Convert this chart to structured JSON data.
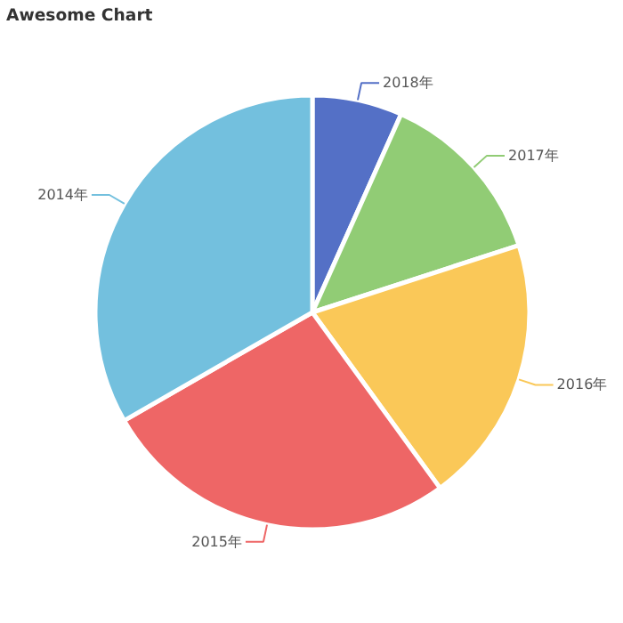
{
  "chart_data": {
    "type": "pie",
    "title": "Awesome Chart",
    "categories": [
      "2018年",
      "2017年",
      "2016年",
      "2015年",
      "2014年"
    ],
    "values": [
      6.7,
      13.3,
      20,
      26.7,
      33.3
    ],
    "colors": [
      "#5470c6",
      "#91cc75",
      "#fac858",
      "#ee6666",
      "#73c0de"
    ]
  }
}
